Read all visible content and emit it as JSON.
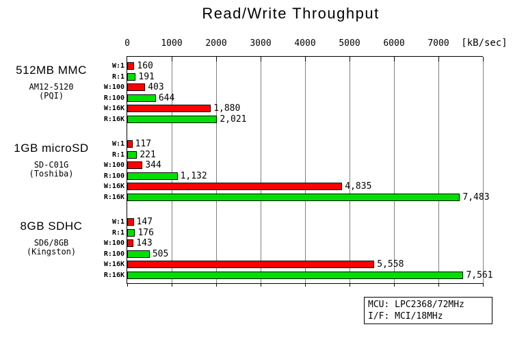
{
  "title": "Read/Write Throughput",
  "axis": {
    "unit_label": "[kB/sec]",
    "ticks": [
      0,
      1000,
      2000,
      3000,
      4000,
      5000,
      6000,
      7000
    ],
    "max": 8000
  },
  "colors": {
    "write_bar": "#FF0000",
    "read_bar": "#00E000",
    "gridline": "#808080",
    "axis": "#000000"
  },
  "chart_data": {
    "type": "bar",
    "orientation": "horizontal",
    "title": "Read/Write Throughput",
    "xlabel": "[kB/sec]",
    "xlim": [
      0,
      8000
    ],
    "x_ticks": [
      0,
      1000,
      2000,
      3000,
      4000,
      5000,
      6000,
      7000
    ],
    "grid": true,
    "bar_labels": [
      "W:1",
      "R:1",
      "W:100",
      "R:100",
      "W:16K",
      "R:16K"
    ],
    "bar_kinds": [
      "write",
      "read",
      "write",
      "read",
      "write",
      "read"
    ],
    "groups": [
      {
        "name": "512MB MMC",
        "model": "AM12-5120",
        "vendor": "(PQI)",
        "values": [
          160,
          191,
          403,
          644,
          1880,
          2021
        ]
      },
      {
        "name": "1GB microSD",
        "model": "SD-C01G",
        "vendor": "(Toshiba)",
        "values": [
          117,
          221,
          344,
          1132,
          4835,
          7483
        ]
      },
      {
        "name": "8GB SDHC",
        "model": "SD6/8GB",
        "vendor": "(Kingston)",
        "values": [
          147,
          176,
          143,
          505,
          5558,
          7561
        ]
      }
    ]
  },
  "info_box": {
    "line1": "MCU: LPC2368/72MHz",
    "line2": "I/F: MCI/18MHz"
  }
}
